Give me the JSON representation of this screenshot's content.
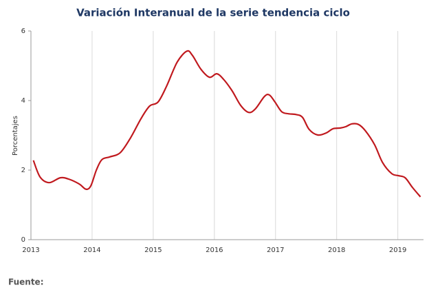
{
  "chart_data": {
    "type": "line",
    "title": "Variación Interanual de la serie tendencia ciclo",
    "y_label": "Porcentajes",
    "source": "Fuente:",
    "x": [
      2013.04,
      2013.15,
      2013.3,
      2013.48,
      2013.62,
      2013.79,
      2013.9,
      2013.98,
      2014.07,
      2014.16,
      2014.29,
      2014.46,
      2014.63,
      2014.8,
      2014.94,
      2015.08,
      2015.22,
      2015.39,
      2015.55,
      2015.64,
      2015.78,
      2015.92,
      2016.04,
      2016.15,
      2016.29,
      2016.43,
      2016.56,
      2016.67,
      2016.82,
      2016.9,
      2016.99,
      2017.1,
      2017.21,
      2017.33,
      2017.44,
      2017.55,
      2017.69,
      2017.83,
      2017.94,
      2018.06,
      2018.15,
      2018.25,
      2018.36,
      2018.47,
      2018.62,
      2018.75,
      2018.9,
      2019.01,
      2019.12,
      2019.24,
      2019.37
    ],
    "values": [
      2.28,
      1.8,
      1.64,
      1.78,
      1.74,
      1.6,
      1.45,
      1.55,
      2.0,
      2.3,
      2.38,
      2.5,
      2.93,
      3.48,
      3.84,
      3.96,
      4.42,
      5.1,
      5.42,
      5.3,
      4.9,
      4.67,
      4.77,
      4.61,
      4.28,
      3.86,
      3.66,
      3.76,
      4.12,
      4.16,
      3.96,
      3.68,
      3.62,
      3.6,
      3.52,
      3.17,
      3.01,
      3.07,
      3.19,
      3.21,
      3.25,
      3.33,
      3.31,
      3.13,
      2.73,
      2.22,
      1.9,
      1.84,
      1.78,
      1.5,
      1.23
    ],
    "color": "#c0191e",
    "xlim": [
      2013,
      2019.42
    ],
    "xticks": [
      2013,
      2014,
      2015,
      2016,
      2017,
      2018,
      2019
    ],
    "ylim": [
      0,
      6
    ],
    "yticks": [
      0,
      2,
      4,
      6
    ],
    "grid": true
  }
}
